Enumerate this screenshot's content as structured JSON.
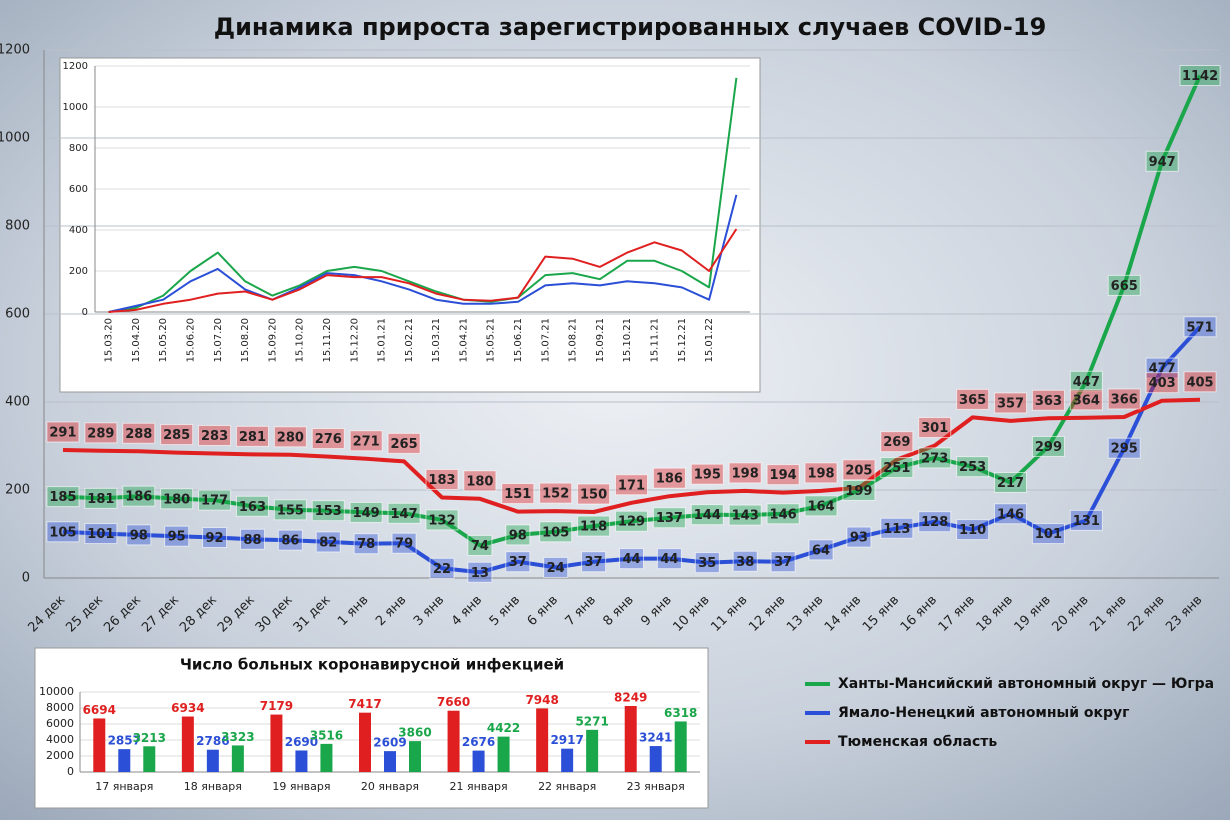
{
  "chart_data": [
    {
      "type": "line",
      "title": "Динамика прироста зарегистрированных случаев COVID-19",
      "categories": [
        "24 дек",
        "25 дек",
        "26 дек",
        "27 дек",
        "28 дек",
        "29 дек",
        "30 дек",
        "31 дек",
        "1 янв",
        "2 янв",
        "3 янв",
        "4 янв",
        "5 янв",
        "6 янв",
        "7 янв",
        "8 янв",
        "9 янв",
        "10 янв",
        "11 янв",
        "12 янв",
        "13 янв",
        "14 янв",
        "15 янв",
        "16 янв",
        "17 янв",
        "18 янв",
        "19 янв",
        "20 янв",
        "21 янв",
        "22 янв",
        "23 янв"
      ],
      "series": [
        {
          "name": "Ханты-Мансийский автономный округ — Югра",
          "color": "#1aa64a",
          "values": [
            185,
            181,
            186,
            180,
            177,
            163,
            155,
            153,
            149,
            147,
            132,
            74,
            98,
            105,
            118,
            129,
            137,
            144,
            143,
            146,
            164,
            199,
            251,
            273,
            253,
            217,
            299,
            447,
            665,
            947,
            1142
          ]
        },
        {
          "name": "Ямало-Ненецкий автономный округ",
          "color": "#2b4fd6",
          "values": [
            105,
            101,
            98,
            95,
            92,
            88,
            86,
            82,
            78,
            79,
            22,
            13,
            37,
            24,
            37,
            44,
            44,
            35,
            38,
            37,
            64,
            93,
            113,
            128,
            110,
            146,
            101,
            131,
            295,
            477,
            571
          ]
        },
        {
          "name": "Тюменская область",
          "color": "#e02020",
          "values": [
            291,
            289,
            288,
            285,
            283,
            281,
            280,
            276,
            271,
            265,
            183,
            180,
            151,
            152,
            150,
            171,
            186,
            195,
            198,
            194,
            198,
            205,
            269,
            301,
            365,
            357,
            363,
            364,
            366,
            403,
            405
          ]
        }
      ],
      "ylim": [
        0,
        1200
      ],
      "yticks": [
        0,
        200,
        400,
        600,
        800,
        1000,
        1200
      ],
      "grid": true,
      "legend": "right"
    },
    {
      "type": "line",
      "categories": [
        "15.03.20",
        "15.04.20",
        "15.05.20",
        "15.06.20",
        "15.07.20",
        "15.08.20",
        "15.09.20",
        "15.10.20",
        "15.11.20",
        "15.12.20",
        "15.01.21",
        "15.02.21",
        "15.03.21",
        "15.04.21",
        "15.05.21",
        "15.06.21",
        "15.07.21",
        "15.08.21",
        "15.09.21",
        "15.10.21",
        "15.11.21",
        "15.12.21",
        "15.01.22",
        null
      ],
      "series": [
        {
          "color": "#1aa64a",
          "values": [
            0,
            20,
            80,
            200,
            290,
            150,
            80,
            130,
            200,
            220,
            200,
            150,
            100,
            60,
            50,
            70,
            180,
            190,
            160,
            250,
            250,
            200,
            120,
            1142
          ]
        },
        {
          "color": "#2b4fd6",
          "values": [
            0,
            30,
            60,
            150,
            210,
            110,
            60,
            120,
            190,
            180,
            150,
            110,
            60,
            40,
            40,
            50,
            130,
            140,
            130,
            150,
            140,
            120,
            60,
            571
          ]
        },
        {
          "color": "#e02020",
          "values": [
            0,
            10,
            40,
            60,
            90,
            100,
            60,
            110,
            180,
            170,
            170,
            140,
            90,
            60,
            55,
            70,
            270,
            260,
            220,
            290,
            340,
            300,
            200,
            405
          ]
        }
      ],
      "ylim": [
        0,
        1200
      ],
      "yticks": [
        0,
        200,
        400,
        600,
        800,
        1000,
        1200
      ],
      "grid": true
    },
    {
      "type": "bar",
      "title": "Число больных коронавирусной инфекцией",
      "categories": [
        "17 января",
        "18 января",
        "19 января",
        "20 января",
        "21 января",
        "22 января",
        "23 января"
      ],
      "series": [
        {
          "color": "#e02020",
          "values": [
            6694,
            6934,
            7179,
            7417,
            7660,
            7948,
            8249
          ]
        },
        {
          "color": "#2b4fd6",
          "values": [
            2857,
            2786,
            2690,
            2609,
            2676,
            2917,
            3241
          ]
        },
        {
          "color": "#1aa64a",
          "values": [
            3213,
            3323,
            3516,
            3860,
            4422,
            5271,
            6318
          ]
        }
      ],
      "ylim": [
        0,
        10000
      ],
      "yticks": [
        0,
        2000,
        4000,
        6000,
        8000,
        10000
      ],
      "grid": true
    }
  ]
}
